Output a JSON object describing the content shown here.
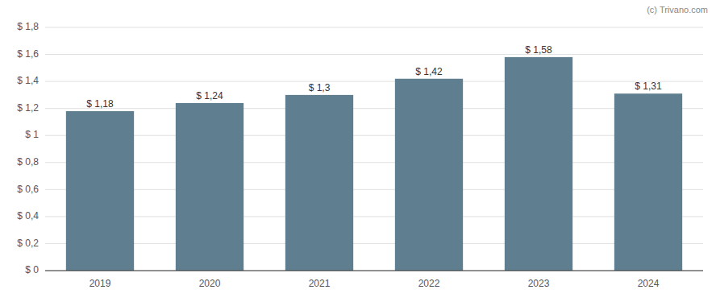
{
  "chart_data": {
    "type": "bar",
    "categories": [
      "2019",
      "2020",
      "2021",
      "2022",
      "2023",
      "2024"
    ],
    "values": [
      1.18,
      1.24,
      1.3,
      1.42,
      1.58,
      1.31
    ],
    "value_labels": [
      "$ 1,18",
      "$ 1,24",
      "$ 1,3",
      "$ 1,42",
      "$ 1,58",
      "$ 1,31"
    ],
    "data_labels": true,
    "color": "#5f7f90",
    "ylim": [
      0,
      1.8
    ],
    "yticks": [
      {
        "value": 0,
        "label": "$ 0"
      },
      {
        "value": 0.2,
        "label": "$ 0,2"
      },
      {
        "value": 0.4,
        "label": "$ 0,4"
      },
      {
        "value": 0.6,
        "label": "$ 0,6"
      },
      {
        "value": 0.8,
        "label": "$ 0,8"
      },
      {
        "value": 1.0,
        "label": "$ 1"
      },
      {
        "value": 1.2,
        "label": "$ 1,2"
      },
      {
        "value": 1.4,
        "label": "$ 1,4"
      },
      {
        "value": 1.6,
        "label": "$ 1,6"
      },
      {
        "value": 1.8,
        "label": "$ 1,8"
      }
    ],
    "grid": true,
    "annotations": [
      "(c) Trivano.com"
    ]
  }
}
